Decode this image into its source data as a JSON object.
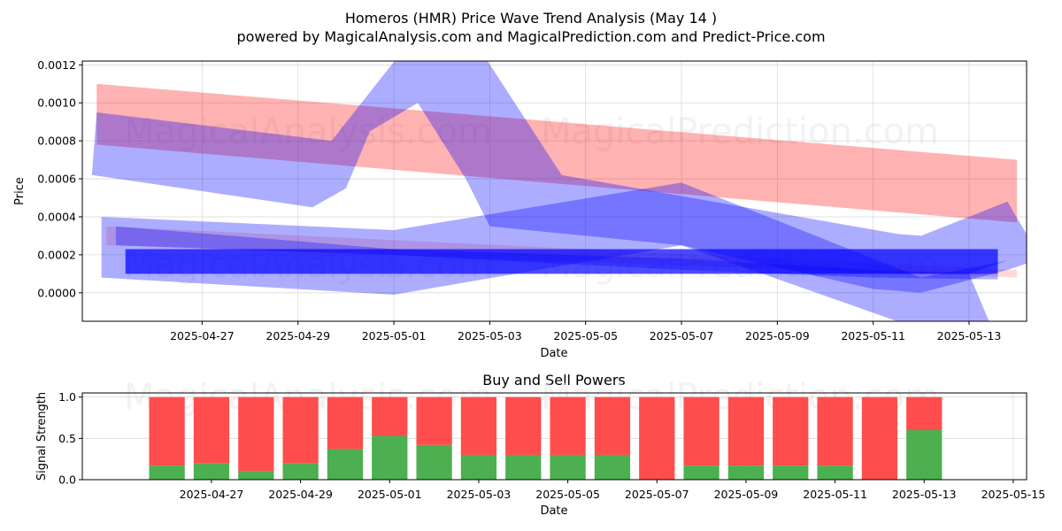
{
  "title_line1": "Homeros (HMR) Price Wave Trend Analysis (May 14 )",
  "title_line2": "powered by MagicalAnalysis.com and MagicalPrediction.com and Predict-Price.com",
  "watermarks": [
    "MagicalAnalysis.com",
    "MagicalPrediction.com"
  ],
  "colors": {
    "red": "#ff0000",
    "blue": "#0000ff",
    "buy": "#4caf50",
    "sell": "#ff4d4d"
  },
  "chart_data": [
    {
      "type": "area",
      "title": "Homeros (HMR) Price Wave Trend Analysis (May 14 )",
      "xlabel": "Date",
      "ylabel": "Price",
      "ylim": [
        -0.00015,
        0.00122
      ],
      "xlim_days": [
        -1.5,
        18.2
      ],
      "x_origin": "2025-04-26",
      "yticks": [
        "0.0000",
        "0.0002",
        "0.0004",
        "0.0006",
        "0.0008",
        "0.0010",
        "0.0012"
      ],
      "ytick_values": [
        0,
        0.0002,
        0.0004,
        0.0006,
        0.0008,
        0.001,
        0.0012
      ],
      "xticks": [
        "2025-04-27",
        "2025-04-29",
        "2025-05-01",
        "2025-05-03",
        "2025-05-05",
        "2025-05-07",
        "2025-05-09",
        "2025-05-11",
        "2025-05-13"
      ],
      "xtick_days": [
        1,
        3,
        5,
        7,
        9,
        11,
        13,
        15,
        17
      ],
      "bands": [
        {
          "name": "red trend upper",
          "color": "red",
          "alpha": 0.3,
          "upper": [
            [
              -1.2,
              0.0011
            ],
            [
              18.0,
              0.0007
            ]
          ],
          "lower": [
            [
              -1.2,
              0.00078
            ],
            [
              18.0,
              0.00037
            ]
          ]
        },
        {
          "name": "red trend lower",
          "color": "red",
          "alpha": 0.15,
          "upper": [
            [
              -1.0,
              0.00035
            ],
            [
              18.0,
              0.00012
            ]
          ],
          "lower": [
            [
              -1.0,
              0.00025
            ],
            [
              18.0,
              8e-05
            ]
          ]
        },
        {
          "name": "blue wave high",
          "color": "blue",
          "alpha": 0.32,
          "upper": [
            [
              -1.2,
              0.00095
            ],
            [
              3.7,
              0.0008
            ],
            [
              5.2,
              0.00128
            ],
            [
              6.8,
              0.00128
            ],
            [
              8.5,
              0.00062
            ],
            [
              15.5,
              0.00031
            ],
            [
              16.0,
              0.0003
            ],
            [
              17.8,
              0.00048
            ],
            [
              18.5,
              0.00018
            ]
          ],
          "lower": [
            [
              -1.3,
              0.00062
            ],
            [
              3.3,
              0.00045
            ],
            [
              4.0,
              0.00055
            ],
            [
              4.5,
              0.00085
            ],
            [
              5.5,
              0.001
            ],
            [
              6.5,
              0.0006
            ],
            [
              7.0,
              0.00035
            ],
            [
              11.0,
              0.00025
            ],
            [
              15.0,
              2e-05
            ],
            [
              16.0,
              0.0
            ],
            [
              17.8,
              0.00012
            ]
          ]
        },
        {
          "name": "blue wave mid",
          "color": "blue",
          "alpha": 0.32,
          "upper": [
            [
              -1.1,
              0.0004
            ],
            [
              5.0,
              0.00033
            ],
            [
              11.0,
              0.00058
            ],
            [
              16.0,
              8e-05
            ],
            [
              17.8,
              0.00017
            ]
          ],
          "lower": [
            [
              -1.1,
              8e-05
            ],
            [
              5.0,
              -1e-05
            ],
            [
              11.0,
              0.00025
            ],
            [
              15.5,
              -0.00015
            ],
            [
              17.5,
              -0.0002
            ],
            [
              17.0,
              0.0001
            ]
          ]
        },
        {
          "name": "blue wave low",
          "color": "blue",
          "alpha": 0.3,
          "upper": [
            [
              -0.8,
              0.00035
            ],
            [
              5.0,
              0.00023
            ],
            [
              11.0,
              0.00018
            ],
            [
              15.0,
              0.00012
            ],
            [
              17.6,
              0.0001
            ]
          ],
          "lower": [
            [
              -0.8,
              0.00025
            ],
            [
              5.0,
              0.0002
            ],
            [
              11.0,
              0.00012
            ],
            [
              15.0,
              8e-05
            ],
            [
              17.6,
              7e-05
            ]
          ]
        },
        {
          "name": "blue solid bar",
          "color": "blue",
          "alpha": 0.7,
          "upper": [
            [
              -0.6,
              0.00023
            ],
            [
              17.6,
              0.00023
            ]
          ],
          "lower": [
            [
              -0.6,
              0.0001
            ],
            [
              17.6,
              0.0001
            ]
          ]
        }
      ]
    },
    {
      "type": "bar",
      "title": "Buy and Sell Powers",
      "xlabel": "Date",
      "ylabel": "Signal Strength",
      "ylim": [
        0,
        1.05
      ],
      "xlim_days": [
        -1.9,
        19.3
      ],
      "x_origin": "2025-04-26",
      "yticks": [
        "0.0",
        "0.5",
        "1.0"
      ],
      "ytick_values": [
        0,
        0.5,
        1.0
      ],
      "xticks": [
        "2025-04-27",
        "2025-04-29",
        "2025-05-01",
        "2025-05-03",
        "2025-05-05",
        "2025-05-07",
        "2025-05-09",
        "2025-05-11",
        "2025-05-13",
        "2025-05-15"
      ],
      "xtick_days": [
        1,
        3,
        5,
        7,
        9,
        11,
        13,
        15,
        17,
        19
      ],
      "bar_days": [
        0,
        1,
        2,
        3,
        4,
        5,
        6,
        7,
        8,
        9,
        10,
        11,
        12,
        13,
        14,
        15,
        16,
        17
      ],
      "series": [
        {
          "name": "Buy",
          "color": "buy",
          "values": [
            0.17,
            0.2,
            0.1,
            0.2,
            0.37,
            0.53,
            0.42,
            0.3,
            0.3,
            0.3,
            0.3,
            0.0,
            0.17,
            0.17,
            0.17,
            0.17,
            0.0,
            0.6
          ]
        },
        {
          "name": "Sell",
          "color": "sell",
          "values": [
            0.83,
            0.8,
            0.9,
            0.8,
            0.63,
            0.47,
            0.58,
            0.7,
            0.7,
            0.7,
            0.7,
            1.0,
            0.83,
            0.83,
            0.83,
            0.83,
            1.0,
            0.4
          ]
        }
      ]
    }
  ]
}
